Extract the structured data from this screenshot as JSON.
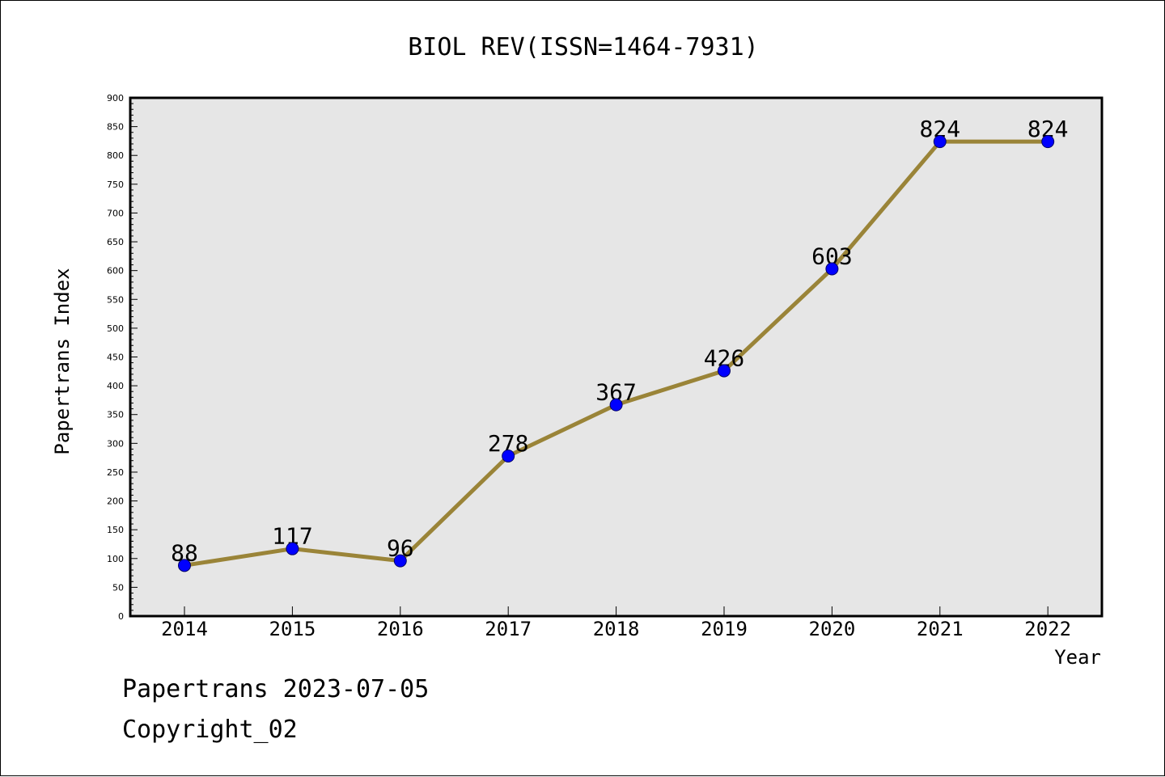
{
  "chart_data": {
    "type": "line",
    "title": "BIOL REV(ISSN=1464-7931)",
    "xlabel": "Year",
    "ylabel": "Papertrans Index",
    "categories": [
      "2014",
      "2015",
      "2016",
      "2017",
      "2018",
      "2019",
      "2020",
      "2021",
      "2022"
    ],
    "series": [
      {
        "values": [
          88,
          117,
          96,
          278,
          367,
          426,
          603,
          824,
          824
        ]
      }
    ],
    "data_labels": [
      "88",
      "117",
      "96",
      "278",
      "367",
      "426",
      "603",
      "824",
      "824"
    ],
    "ylim": [
      0,
      900
    ],
    "y_ticks": [
      "0",
      "50",
      "100",
      "150",
      "200",
      "250",
      "300",
      "350",
      "400",
      "450",
      "500",
      "550",
      "600",
      "650",
      "700",
      "750",
      "800",
      "850",
      "900"
    ],
    "grid": false,
    "legend": "none",
    "colors": {
      "plot_background": "#e6e6e6",
      "line": "#9a8438",
      "marker_fill": "#0000ff",
      "marker_stroke": "#000066",
      "axis": "#000000"
    }
  },
  "footer": {
    "date_text": "Papertrans 2023-07-05",
    "copyright_text": "Copyright_02"
  }
}
